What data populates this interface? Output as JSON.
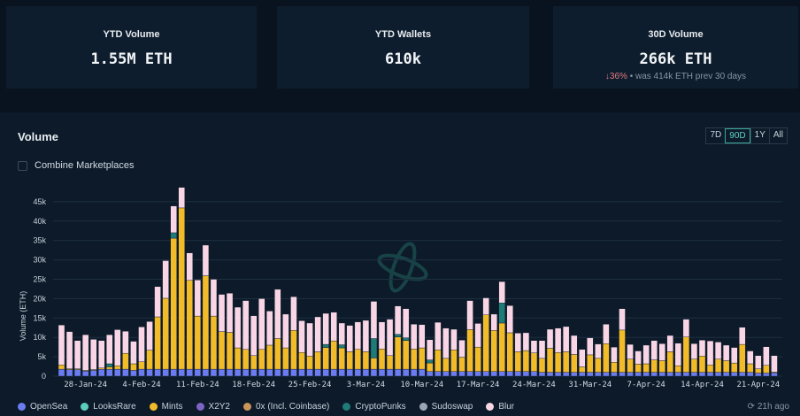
{
  "cards": [
    {
      "label": "YTD Volume",
      "value": "1.55M ETH"
    },
    {
      "label": "YTD Wallets",
      "value": "610k"
    },
    {
      "label": "30D Volume",
      "value": "266k ETH",
      "change": "36%",
      "change_icon": "arrow-down-icon",
      "note": "• was 414k ETH prev 30 days"
    }
  ],
  "panel": {
    "title": "Volume",
    "ranges": [
      "7D",
      "90D",
      "1Y",
      "All"
    ],
    "active_range": "90D",
    "combine_label": "Combine Marketplaces",
    "combine_checked": false,
    "updated": "21h ago"
  },
  "legend": [
    {
      "name": "OpenSea",
      "color": "#6b7cf0"
    },
    {
      "name": "LooksRare",
      "color": "#5ccdbd"
    },
    {
      "name": "Mints",
      "color": "#f2bb2a"
    },
    {
      "name": "X2Y2",
      "color": "#7d63c6"
    },
    {
      "name": "0x (Incl. Coinbase)",
      "color": "#c9955a"
    },
    {
      "name": "CryptoPunks",
      "color": "#1f7b78"
    },
    {
      "name": "Sudoswap",
      "color": "#9aa6b5"
    },
    {
      "name": "Blur",
      "color": "#f9d6e6"
    }
  ],
  "chart_data": {
    "type": "bar",
    "stacked": true,
    "ylabel": "Volume (ETH)",
    "ylim": [
      0,
      48000
    ],
    "yticks": [
      {
        "v": 0,
        "label": "0"
      },
      {
        "v": 5000,
        "label": "5k"
      },
      {
        "v": 10000,
        "label": "10k"
      },
      {
        "v": 15000,
        "label": "15k"
      },
      {
        "v": 20000,
        "label": "20k"
      },
      {
        "v": 25000,
        "label": "25k"
      },
      {
        "v": 30000,
        "label": "30k"
      },
      {
        "v": 35000,
        "label": "35k"
      },
      {
        "v": 40000,
        "label": "40k"
      },
      {
        "v": 45000,
        "label": "45k"
      }
    ],
    "xticks": [
      {
        "i": 3,
        "label": "28-Jan-24"
      },
      {
        "i": 10,
        "label": "4-Feb-24"
      },
      {
        "i": 17,
        "label": "11-Feb-24"
      },
      {
        "i": 24,
        "label": "18-Feb-24"
      },
      {
        "i": 31,
        "label": "25-Feb-24"
      },
      {
        "i": 38,
        "label": "3-Mar-24"
      },
      {
        "i": 45,
        "label": "10-Mar-24"
      },
      {
        "i": 52,
        "label": "17-Mar-24"
      },
      {
        "i": 59,
        "label": "24-Mar-24"
      },
      {
        "i": 66,
        "label": "31-Mar-24"
      },
      {
        "i": 73,
        "label": "7-Apr-24"
      },
      {
        "i": 80,
        "label": "14-Apr-24"
      },
      {
        "i": 87,
        "label": "21-Apr-24"
      }
    ],
    "units": "k ETH",
    "series": [
      {
        "name": "OpenSea",
        "color": "#6b7cf0",
        "values": [
          1.8,
          1.7,
          1.7,
          1.3,
          1.5,
          1.8,
          1.8,
          1.8,
          1.8,
          1.5,
          1.8,
          1.8,
          1.8,
          1.8,
          1.8,
          1.8,
          1.8,
          1.8,
          1.8,
          1.8,
          1.8,
          1.8,
          1.8,
          1.8,
          1.8,
          1.8,
          1.8,
          1.8,
          1.8,
          1.8,
          1.8,
          1.8,
          1.8,
          1.8,
          1.8,
          1.8,
          1.8,
          1.8,
          1.8,
          1.8,
          1.8,
          1.8,
          1.8,
          1.8,
          1.8,
          1.8,
          1.2,
          1.2,
          1.2,
          1.2,
          1.2,
          1.2,
          1.2,
          1.2,
          1.2,
          1.2,
          1.2,
          1.2,
          1.2,
          1.2,
          1.0,
          1.0,
          1.0,
          1.0,
          1.0,
          1.0,
          1.0,
          1.0,
          1.0,
          1.0,
          1.0,
          1.0,
          1.0,
          1.0,
          1.0,
          1.0,
          1.0,
          1.0,
          1.0,
          1.0,
          1.0,
          1.0,
          1.0,
          1.0,
          1.0,
          1.0,
          1.0,
          0.8,
          0.8,
          0.9
        ]
      },
      {
        "name": "Mints",
        "color": "#f2bb2a",
        "values": [
          1.1,
          0.2,
          0.2,
          0.2,
          0.2,
          0.3,
          0.6,
          0.9,
          4.1,
          1.7,
          1.9,
          4.9,
          13.5,
          18.3,
          33.8,
          41.6,
          22.9,
          13.7,
          24.1,
          13.7,
          9.7,
          9.5,
          5.5,
          5.1,
          3.5,
          5.1,
          6.2,
          7.9,
          5.5,
          10.0,
          4.3,
          3.4,
          4.5,
          5.6,
          7.3,
          5.5,
          4.5,
          5.1,
          4.5,
          2.9,
          5.2,
          3.5,
          8.3,
          7.4,
          5.2,
          5.5,
          2.2,
          5.6,
          3.4,
          5.6,
          3.7,
          10.8,
          6.3,
          14.6,
          10.6,
          12.5,
          10.0,
          5.1,
          5.4,
          4.8,
          3.6,
          6.2,
          5.1,
          5.3,
          4.6,
          1.4,
          4.5,
          3.6,
          7.4,
          2.6,
          10.9,
          3.4,
          2.1,
          2.2,
          3.2,
          3.0,
          5.3,
          1.7,
          9.1,
          3.4,
          4.2,
          1.9,
          3.4,
          3.0,
          2.4,
          7.2,
          2.2,
          1.1,
          2.0,
          0.2
        ]
      },
      {
        "name": "CryptoPunks",
        "color": "#1f7b78",
        "values": [
          0,
          0,
          0,
          0,
          0,
          0,
          0.8,
          0,
          0,
          0,
          0,
          0,
          0,
          0,
          1.4,
          0,
          0,
          0,
          0,
          0,
          0,
          0,
          0,
          0,
          0,
          0,
          0,
          0,
          0,
          0,
          0,
          0,
          0,
          0.8,
          0,
          0.8,
          0,
          0,
          0,
          5.0,
          0,
          0,
          0.7,
          0.7,
          0,
          0,
          0.8,
          0,
          0,
          0,
          0,
          0,
          0,
          0,
          0,
          5.2,
          0,
          0,
          0,
          0,
          0,
          0,
          0,
          0,
          0,
          0,
          0,
          0,
          0,
          0,
          0,
          0,
          0,
          0,
          0,
          0,
          0,
          0,
          0,
          0,
          0,
          0,
          0,
          0,
          0,
          0,
          0,
          0,
          0,
          0
        ]
      },
      {
        "name": "Blur",
        "color": "#f9d6e6",
        "values": [
          10.3,
          9.6,
          7.3,
          9.2,
          7.8,
          7.1,
          7.5,
          9.3,
          5.7,
          5.8,
          9.0,
          7.4,
          7.8,
          9.7,
          6.9,
          5.3,
          7.1,
          9.3,
          7.9,
          9.5,
          9.6,
          10.1,
          10.5,
          12.6,
          10.3,
          13.1,
          8.8,
          12.7,
          8.7,
          8.7,
          8.2,
          8.5,
          9.0,
          8.0,
          7.4,
          5.6,
          6.8,
          7.1,
          8.1,
          9.6,
          7.0,
          9.4,
          7.3,
          7.5,
          6.4,
          6.0,
          5.2,
          7.1,
          7.8,
          5.3,
          4.4,
          7.5,
          6.1,
          4.4,
          4.2,
          5.5,
          7.0,
          4.8,
          4.6,
          3.2,
          4.6,
          4.9,
          6.3,
          6.5,
          4.9,
          4.5,
          4.4,
          3.7,
          5.0,
          3.9,
          5.5,
          3.8,
          3.4,
          4.8,
          5.0,
          4.4,
          4.2,
          5.8,
          4.6,
          4.0,
          4.1,
          6.2,
          4.4,
          4.0,
          4.0,
          4.4,
          3.3,
          3.4,
          4.8,
          4.2
        ]
      }
    ]
  }
}
